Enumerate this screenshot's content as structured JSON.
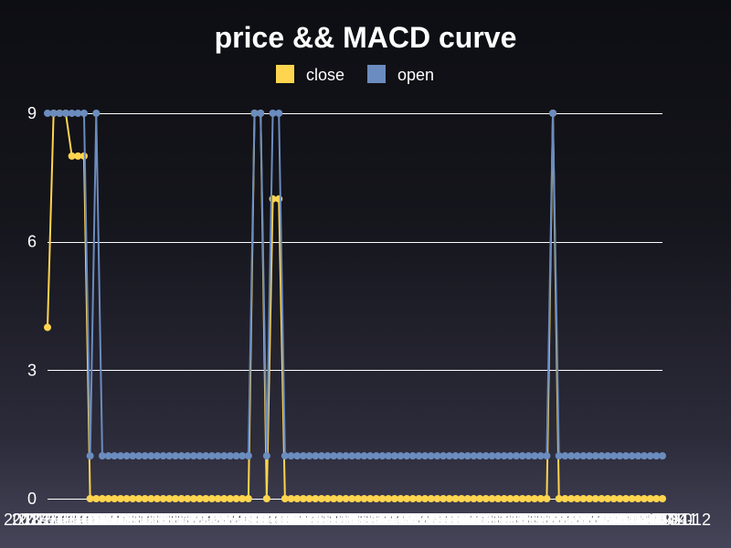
{
  "chart_data": {
    "type": "line",
    "title": "price && MACD curve",
    "xlabel": "",
    "ylabel": "",
    "ylim": [
      0,
      9
    ],
    "yticks": [
      0,
      3,
      6,
      9
    ],
    "grid": true,
    "legend_position": "top-center",
    "x": [
      "2018-01-01",
      "2018-01-02",
      "2018-01-03",
      "2018-01-04",
      "2018-01-05",
      "2018-01-06",
      "2018-01-07",
      "2018-01-08",
      "2018-01-09",
      "2018-01-10",
      "2018-01-11",
      "2018-01-12",
      "2018-01-13",
      "2018-01-14",
      "2018-01-15",
      "2018-01-16",
      "2018-01-17",
      "2018-01-18",
      "2018-01-19",
      "2018-01-20",
      "2018-01-21",
      "2018-01-22",
      "2018-01-23",
      "2018-01-24",
      "2018-01-25",
      "2018-01-26",
      "2018-01-27",
      "2018-01-28",
      "2018-01-29",
      "2018-01-30",
      "2018-01-31",
      "2018-02-01",
      "2018-02-02",
      "2018-02-03",
      "2018-02-04",
      "2018-02-05",
      "2018-02-06",
      "2018-02-07",
      "2018-02-08",
      "2018-02-09",
      "2018-02-10",
      "2018-02-11",
      "2018-02-12",
      "2018-02-13",
      "2018-02-14",
      "2018-02-15",
      "2018-02-16",
      "2018-02-17",
      "2018-02-18",
      "2018-02-19",
      "2018-02-20",
      "2018-02-21",
      "2018-02-22",
      "2018-02-23",
      "2018-02-24",
      "2018-02-25",
      "2018-02-26",
      "2018-02-27",
      "2018-02-28",
      "2018-03-01",
      "2018-03-02",
      "2018-03-03",
      "2018-03-04",
      "2018-03-05",
      "2018-03-06",
      "2018-03-07",
      "2018-03-08",
      "2018-03-09",
      "2018-03-10",
      "2018-03-11",
      "2018-03-12",
      "2018-03-13",
      "2018-03-14",
      "2018-03-15",
      "2018-03-16",
      "2018-03-17",
      "2018-03-18",
      "2018-03-19",
      "2018-03-20",
      "2018-03-21",
      "2018-03-22",
      "2018-03-23",
      "2018-03-24",
      "2018-03-25",
      "2018-03-26",
      "2018-03-27",
      "2018-03-28",
      "2018-03-29",
      "2018-03-30",
      "2018-03-31",
      "2018-04-01",
      "2018-04-02",
      "2018-04-03",
      "2018-04-04",
      "2018-04-05",
      "2018-04-06",
      "2018-04-07",
      "2018-04-08",
      "2018-04-09",
      "2018-04-10",
      "2018-04-11",
      "2018-04-12"
    ],
    "series": [
      {
        "name": "close",
        "color": "#ffd54f",
        "values": [
          4,
          9,
          9,
          9,
          8,
          8,
          8,
          0,
          0,
          0,
          0,
          0,
          0,
          0,
          0,
          0,
          0,
          0,
          0,
          0,
          0,
          0,
          0,
          0,
          0,
          0,
          0,
          0,
          0,
          0,
          0,
          0,
          0,
          0,
          9,
          9,
          0,
          7,
          7,
          0,
          0,
          0,
          0,
          0,
          0,
          0,
          0,
          0,
          0,
          0,
          0,
          0,
          0,
          0,
          0,
          0,
          0,
          0,
          0,
          0,
          0,
          0,
          0,
          0,
          0,
          0,
          0,
          0,
          0,
          0,
          0,
          0,
          0,
          0,
          0,
          0,
          0,
          0,
          0,
          0,
          0,
          0,
          0,
          9,
          0,
          0,
          0,
          0,
          0,
          0,
          0,
          0,
          0,
          0,
          0,
          0,
          0,
          0,
          0,
          0,
          0,
          0
        ]
      },
      {
        "name": "open",
        "color": "#6b8cbe",
        "values": [
          9,
          9,
          9,
          9,
          9,
          9,
          9,
          1,
          9,
          1,
          1,
          1,
          1,
          1,
          1,
          1,
          1,
          1,
          1,
          1,
          1,
          1,
          1,
          1,
          1,
          1,
          1,
          1,
          1,
          1,
          1,
          1,
          1,
          1,
          9,
          9,
          1,
          9,
          9,
          1,
          1,
          1,
          1,
          1,
          1,
          1,
          1,
          1,
          1,
          1,
          1,
          1,
          1,
          1,
          1,
          1,
          1,
          1,
          1,
          1,
          1,
          1,
          1,
          1,
          1,
          1,
          1,
          1,
          1,
          1,
          1,
          1,
          1,
          1,
          1,
          1,
          1,
          1,
          1,
          1,
          1,
          1,
          1,
          9,
          1,
          1,
          1,
          1,
          1,
          1,
          1,
          1,
          1,
          1,
          1,
          1,
          1,
          1,
          1,
          1,
          1,
          1
        ]
      }
    ]
  }
}
